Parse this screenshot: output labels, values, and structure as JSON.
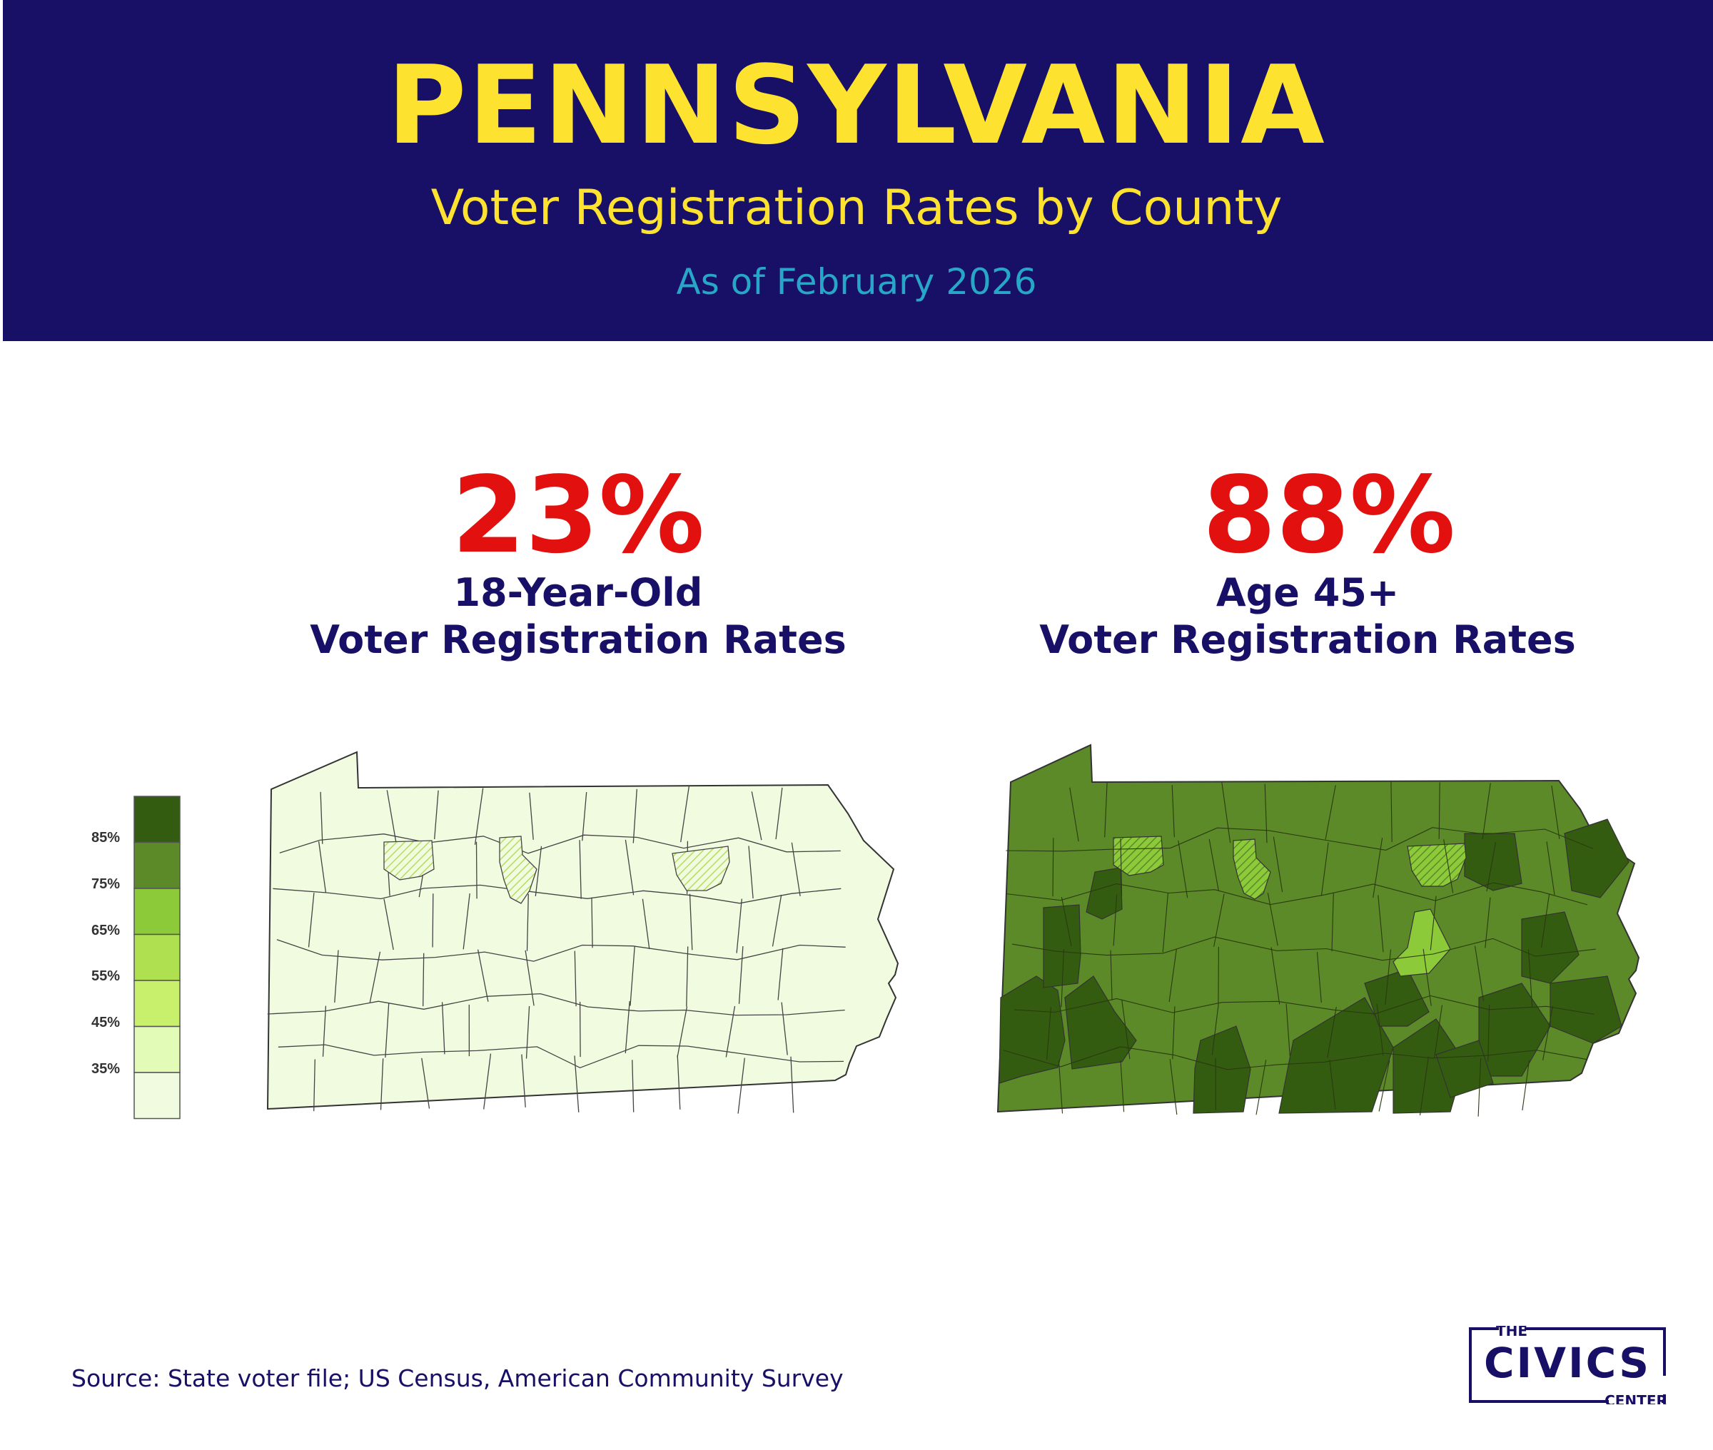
{
  "header": {
    "title": "PENNSYLVANIA",
    "subtitle": "Voter Registration Rates by County",
    "date": "As of February 2026"
  },
  "colors": {
    "header_bg": "#180f66",
    "title": "#fde22f",
    "date": "#28a6c7",
    "stat": "#e31010",
    "label": "#180f66",
    "scale": [
      "#f0fbe0",
      "#e2fbb6",
      "#c8f06c",
      "#afe050",
      "#8cca3a",
      "#5c8a28",
      "#345c10"
    ]
  },
  "panels": [
    {
      "stat": "23%",
      "label_line1": "18-Year-Old",
      "label_line2": "Voter Registration Rates",
      "map_fill": "#f0fbe0"
    },
    {
      "stat": "88%",
      "label_line1": "Age 45+",
      "label_line2": "Voter Registration Rates",
      "map_fill": "#5c8a28"
    }
  ],
  "legend": {
    "ticks": [
      "85%",
      "75%",
      "65%",
      "55%",
      "45%",
      "35%"
    ]
  },
  "footer": {
    "source": "Source: State voter file; US Census, American Community Survey"
  },
  "logo": {
    "line1": "THE",
    "line2": "CIVICS",
    "line3": "CENTER"
  }
}
